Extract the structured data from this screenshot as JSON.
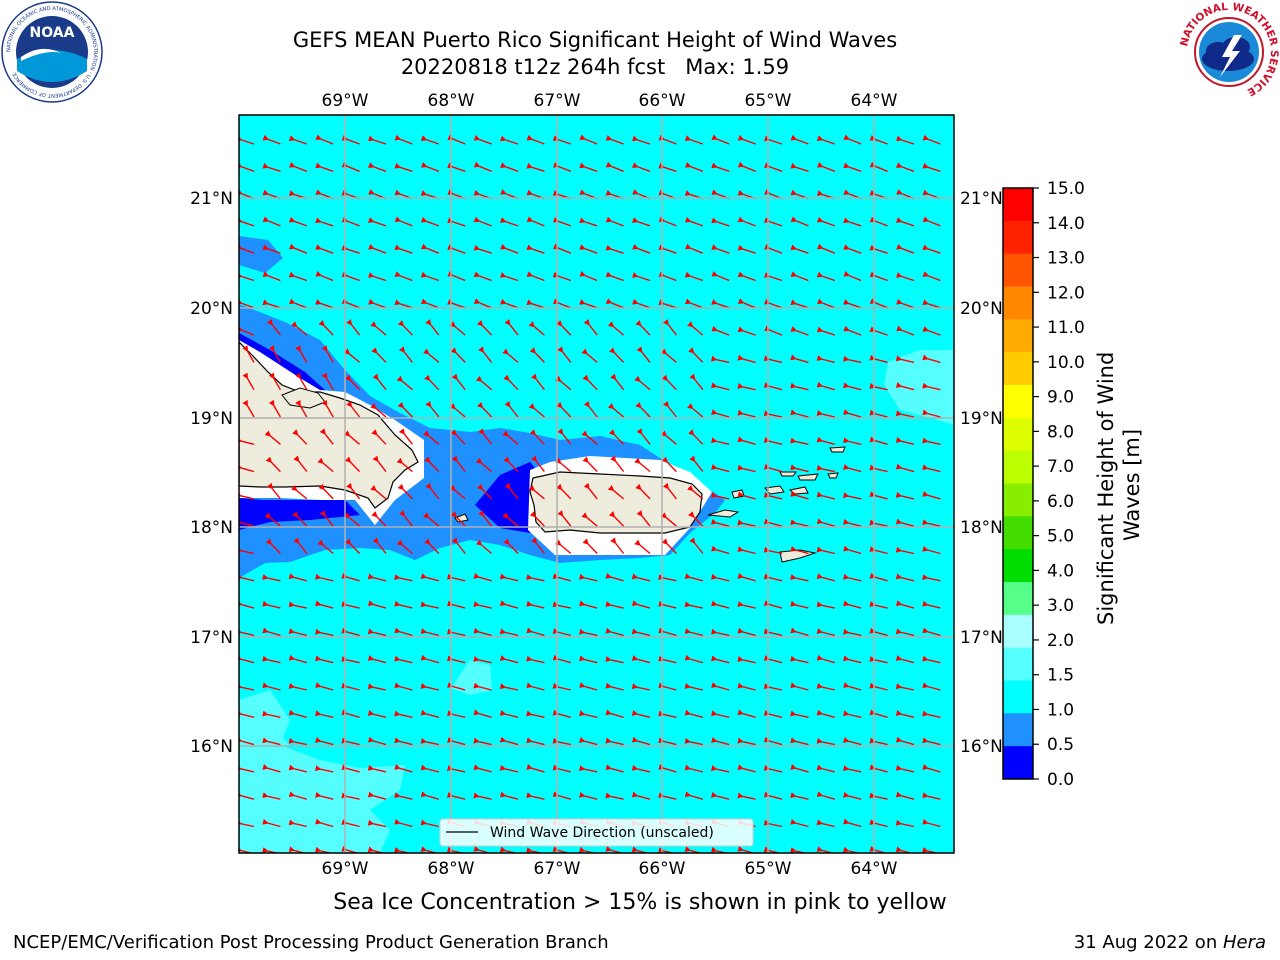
{
  "title": {
    "line1": "GEFS MEAN Puerto Rico Significant Height of Wind Waves",
    "line2": "20220818 t12z 264h fcst   Max: 1.59"
  },
  "map": {
    "lon_labels": [
      "69°W",
      "68°W",
      "67°W",
      "66°W",
      "65°W",
      "64°W"
    ],
    "lat_labels": [
      "21°N",
      "20°N",
      "19°N",
      "18°N",
      "17°N",
      "16°N"
    ],
    "legend_label": "Wind Wave Direction (unscaled)",
    "colors": {
      "ocean_1_1p5": "#00ffff",
      "ocean_1p5_2": "#55ffff",
      "ocean_0p5_1": "#1e90ff",
      "ocean_0_0p5": "#0000ff",
      "land": "#eeecdc",
      "arrow": "#ff0000"
    }
  },
  "colorbar": {
    "label": "Significant Height of Wind Waves [m]",
    "ticks": [
      "15.0",
      "14.0",
      "13.0",
      "12.0",
      "11.0",
      "10.0",
      "9.0",
      "8.0",
      "7.0",
      "6.0",
      "5.0",
      "4.0",
      "3.0",
      "2.0",
      "1.5",
      "1.0",
      "0.5",
      "0.0"
    ],
    "colors": [
      "#ff0000",
      "#ff2200",
      "#ff5500",
      "#ff8800",
      "#ffaa00",
      "#ffcc00",
      "#ffff00",
      "#ddff00",
      "#bbff00",
      "#88ee00",
      "#44dd00",
      "#00dd00",
      "#55ff88",
      "#aaffff",
      "#55ffff",
      "#00ffff",
      "#1e90ff",
      "#0000ff"
    ]
  },
  "subcaption": "Sea Ice Concentration > 15% is shown in pink to yellow",
  "footer": {
    "left": "NCEP/EMC/Verification Post Processing Product Generation Branch",
    "right_date": "31 Aug 2022 on ",
    "right_host": "Hera"
  },
  "logos": {
    "noaa_text": "NOAA",
    "noaa_ring": "NATIONAL OCEANIC AND ATMOSPHERIC ADMINISTRATION · U.S. DEPARTMENT OF COMMERCE",
    "nws_ring": "NATIONAL WEATHER SERVICE"
  }
}
